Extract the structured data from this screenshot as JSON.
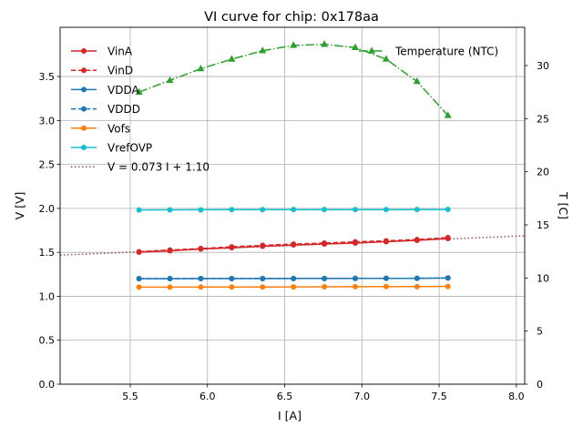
{
  "chart_data": {
    "type": "line",
    "title": "VI curve for chip: 0x178aa",
    "xlabel": "I [A]",
    "ylabel": "V [V]",
    "y2label": "T [C]",
    "xlim": [
      5.046,
      8.054
    ],
    "ylim": [
      0.0,
      4.06
    ],
    "y2lim": [
      0.0,
      33.6
    ],
    "grid": true,
    "xticks": [
      "5.5",
      "6.0",
      "6.5",
      "7.0",
      "7.5",
      "8.0"
    ],
    "xtick_values": [
      5.5,
      6.0,
      6.5,
      7.0,
      7.5,
      8.0
    ],
    "yticks": [
      "0.0",
      "0.5",
      "1.0",
      "1.5",
      "2.0",
      "2.5",
      "3.0",
      "3.5"
    ],
    "ytick_values": [
      0.0,
      0.5,
      1.0,
      1.5,
      2.0,
      2.5,
      3.0,
      3.5
    ],
    "y2ticks": [
      "0",
      "5",
      "10",
      "15",
      "20",
      "25",
      "30"
    ],
    "y2tick_values": [
      0,
      5,
      10,
      15,
      20,
      25,
      30
    ],
    "x": [
      5.557,
      5.757,
      5.957,
      6.157,
      6.357,
      6.557,
      6.757,
      6.957,
      7.157,
      7.357,
      7.557
    ],
    "series": [
      {
        "name": "VinA",
        "axis": "left",
        "color": "#d62728",
        "dash": "solid",
        "marker": "circle",
        "values": [
          1.502,
          1.517,
          1.538,
          1.553,
          1.569,
          1.584,
          1.595,
          1.605,
          1.621,
          1.636,
          1.657
        ]
      },
      {
        "name": "VinD",
        "axis": "left",
        "color": "#d62728",
        "dash": "dashed",
        "marker": "circle",
        "values": [
          1.507,
          1.527,
          1.543,
          1.563,
          1.579,
          1.594,
          1.605,
          1.62,
          1.631,
          1.646,
          1.667
        ]
      },
      {
        "name": "VDDA",
        "axis": "left",
        "color": "#1f77b4",
        "dash": "solid",
        "marker": "circle",
        "values": [
          1.2,
          1.2,
          1.201,
          1.201,
          1.201,
          1.202,
          1.202,
          1.203,
          1.204,
          1.204,
          1.208
        ]
      },
      {
        "name": "VDDD",
        "axis": "left",
        "color": "#1f77b4",
        "dash": "dashed",
        "marker": "circle",
        "values": [
          1.201,
          1.201,
          1.202,
          1.202,
          1.202,
          1.203,
          1.203,
          1.204,
          1.205,
          1.205,
          1.209
        ]
      },
      {
        "name": "Vofs",
        "axis": "left",
        "color": "#ff7f0e",
        "dash": "solid",
        "marker": "circle",
        "values": [
          1.104,
          1.104,
          1.105,
          1.105,
          1.106,
          1.107,
          1.108,
          1.109,
          1.111,
          1.11,
          1.112
        ]
      },
      {
        "name": "VrefOVP",
        "axis": "left",
        "color": "#17becf",
        "dash": "solid",
        "marker": "circle",
        "values": [
          1.982,
          1.983,
          1.984,
          1.986,
          1.986,
          1.987,
          1.987,
          1.987,
          1.987,
          1.987,
          1.988
        ]
      },
      {
        "name": "Temperature (NTC)",
        "axis": "right",
        "color": "#2ca02c",
        "dash": "dashdot",
        "marker": "triangle",
        "values": [
          27.5,
          28.6,
          29.7,
          30.6,
          31.4,
          31.9,
          32.0,
          31.7,
          30.6,
          28.5,
          25.3
        ]
      }
    ],
    "fit": {
      "name": "V = 0.073 I + 1.10",
      "slope": 0.073,
      "intercept": 1.1,
      "color": "#8c564b",
      "dash": "dotted",
      "x_range": [
        5.046,
        8.054
      ]
    },
    "legend_left": [
      "VinA",
      "VinD",
      "VDDA",
      "VDDD",
      "Vofs",
      "VrefOVP",
      "V = 0.073 I + 1.10"
    ],
    "legend_right": [
      "Temperature (NTC)"
    ],
    "legend_placement": "top-left (voltages), top-right (temperature)"
  }
}
